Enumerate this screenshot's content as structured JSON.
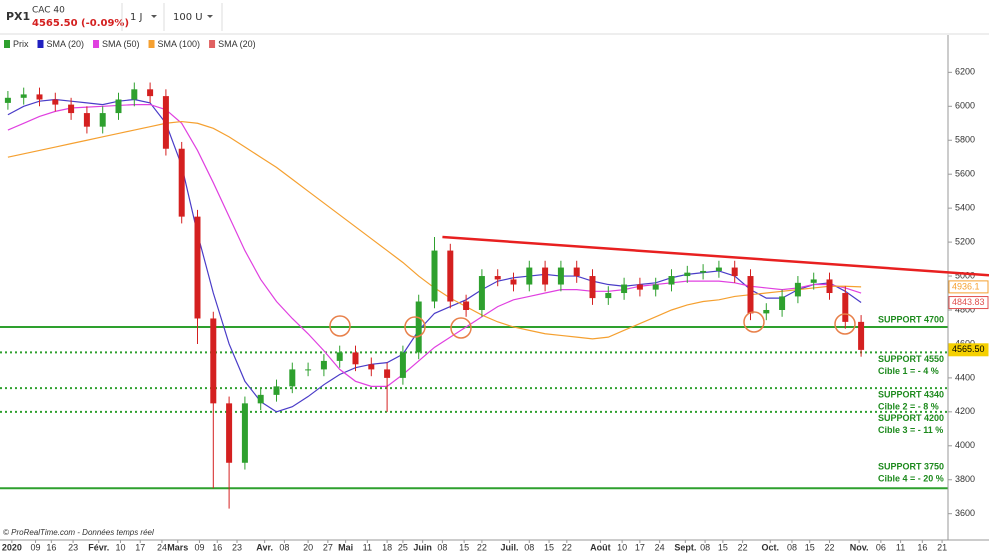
{
  "header": {
    "symbol": "PX1",
    "name": "CAC 40",
    "quote": "4565.50 (-0.09%)",
    "period": "1 J",
    "units": "100 U"
  },
  "footer": "© ProRealTime.com - Données temps réel",
  "chart_data": {
    "type": "candlestick",
    "legend": [
      {
        "name": "Prix",
        "color": "#2ea02e"
      },
      {
        "name": "SMA (20)",
        "color": "#2020c0"
      },
      {
        "name": "SMA (50)",
        "color": "#e040e0"
      },
      {
        "name": "SMA (100)",
        "color": "#f5a030"
      },
      {
        "name": "SMA (20)",
        "color": "#e06060"
      }
    ],
    "up_color": "#2ea02e",
    "down_color": "#d42020",
    "xlim": [
      0,
      240
    ],
    "ylim": [
      3445,
      6420
    ],
    "yticks": [
      3600,
      3800,
      4000,
      4200,
      4400,
      4600,
      4800,
      5000,
      5200,
      5400,
      5600,
      5800,
      6000,
      6200
    ],
    "xticks": [
      {
        "value": 3,
        "label": "2020"
      },
      {
        "value": 9,
        "label": "09"
      },
      {
        "value": 13,
        "label": "16"
      },
      {
        "value": 18.5,
        "label": "23"
      },
      {
        "value": 25,
        "label": "Févr."
      },
      {
        "value": 30.5,
        "label": "10"
      },
      {
        "value": 35.5,
        "label": "17"
      },
      {
        "value": 41,
        "label": "24"
      },
      {
        "value": 45,
        "label": "Mars"
      },
      {
        "value": 50.5,
        "label": "09"
      },
      {
        "value": 55,
        "label": "16"
      },
      {
        "value": 60,
        "label": "23"
      },
      {
        "value": 67,
        "label": "Avr."
      },
      {
        "value": 72,
        "label": "08"
      },
      {
        "value": 78,
        "label": "20"
      },
      {
        "value": 83,
        "label": "27"
      },
      {
        "value": 87.5,
        "label": "Mai"
      },
      {
        "value": 93,
        "label": "11"
      },
      {
        "value": 98,
        "label": "18"
      },
      {
        "value": 102,
        "label": "25"
      },
      {
        "value": 107,
        "label": "Juin"
      },
      {
        "value": 112,
        "label": "08"
      },
      {
        "value": 117.5,
        "label": "15"
      },
      {
        "value": 122,
        "label": "22"
      },
      {
        "value": 129,
        "label": "Juil."
      },
      {
        "value": 134,
        "label": "08"
      },
      {
        "value": 139,
        "label": "15"
      },
      {
        "value": 143.5,
        "label": "22"
      },
      {
        "value": 152,
        "label": "Août"
      },
      {
        "value": 157.5,
        "label": "10"
      },
      {
        "value": 162,
        "label": "17"
      },
      {
        "value": 167,
        "label": "24"
      },
      {
        "value": 173.5,
        "label": "Sept."
      },
      {
        "value": 178.5,
        "label": "08"
      },
      {
        "value": 183,
        "label": "15"
      },
      {
        "value": 188,
        "label": "22"
      },
      {
        "value": 195,
        "label": "Oct."
      },
      {
        "value": 200.5,
        "label": "08"
      },
      {
        "value": 205,
        "label": "15"
      },
      {
        "value": 210,
        "label": "22"
      },
      {
        "value": 217.5,
        "label": "Nov."
      },
      {
        "value": 223,
        "label": "06"
      },
      {
        "value": 228,
        "label": "11"
      },
      {
        "value": 233.5,
        "label": "16"
      },
      {
        "value": 238.5,
        "label": "21"
      }
    ],
    "x": [
      2,
      6,
      10,
      14,
      18,
      22,
      26,
      30,
      34,
      38,
      42,
      46,
      50,
      54,
      58,
      62,
      66,
      70,
      74,
      78,
      82,
      86,
      90,
      94,
      98,
      102,
      106,
      110,
      114,
      118,
      122,
      126,
      130,
      134,
      138,
      142,
      146,
      150,
      154,
      158,
      162,
      166,
      170,
      174,
      178,
      182,
      186,
      190,
      194,
      198,
      202,
      206,
      210,
      214,
      218
    ],
    "open": [
      6020,
      6050,
      6070,
      6040,
      6010,
      5960,
      5880,
      5960,
      6040,
      6100,
      6060,
      5750,
      5350,
      4750,
      4250,
      3900,
      4250,
      4300,
      4350,
      4450,
      4450,
      4500,
      4550,
      4480,
      4450,
      4400,
      4550,
      4850,
      5150,
      4850,
      4800,
      5000,
      4980,
      4950,
      5050,
      4950,
      5050,
      5000,
      4870,
      4900,
      4950,
      4920,
      4950,
      5000,
      5020,
      5030,
      5050,
      5000,
      4780,
      4800,
      4880,
      4960,
      4980,
      4900,
      4730
    ],
    "high": [
      6090,
      6110,
      6110,
      6080,
      6050,
      6000,
      6000,
      6080,
      6140,
      6140,
      6100,
      5790,
      5390,
      4790,
      4290,
      4290,
      4340,
      4390,
      4490,
      4490,
      4540,
      4590,
      4590,
      4520,
      4490,
      4590,
      4890,
      5230,
      5190,
      4890,
      5040,
      5040,
      5020,
      5090,
      5090,
      5090,
      5090,
      5040,
      4940,
      4990,
      4990,
      4990,
      5040,
      5060,
      5070,
      5090,
      5090,
      5040,
      4840,
      4920,
      5000,
      5020,
      5020,
      4940,
      4770
    ],
    "low": [
      5980,
      6010,
      6000,
      5970,
      5920,
      5840,
      5840,
      5920,
      6000,
      6020,
      5710,
      5310,
      4600,
      3750,
      3630,
      3860,
      4210,
      4260,
      4310,
      4410,
      4410,
      4460,
      4440,
      4410,
      4200,
      4360,
      4510,
      4810,
      4810,
      4760,
      4760,
      4940,
      4910,
      4910,
      4910,
      4910,
      4960,
      4830,
      4830,
      4860,
      4880,
      4880,
      4910,
      4960,
      4980,
      4990,
      4960,
      4740,
      4740,
      4760,
      4840,
      4920,
      4860,
      4690,
      4525
    ],
    "close": [
      6050,
      6070,
      6040,
      6010,
      5960,
      5880,
      5960,
      6040,
      6100,
      6060,
      5750,
      5350,
      4750,
      4250,
      3900,
      4250,
      4300,
      4350,
      4450,
      4450,
      4500,
      4550,
      4480,
      4450,
      4400,
      4550,
      4850,
      5150,
      4850,
      4800,
      5000,
      4980,
      4950,
      5050,
      4950,
      5050,
      5000,
      4870,
      4900,
      4950,
      4920,
      4950,
      5000,
      5020,
      5030,
      5050,
      5000,
      4780,
      4800,
      4880,
      4960,
      4980,
      4900,
      4730,
      4565
    ],
    "series": [
      {
        "name": "SMA (20)",
        "color": "#4a3cc8",
        "values": [
          5950,
          6000,
          6030,
          6040,
          6030,
          6020,
          6010,
          6030,
          6040,
          6020,
          5900,
          5650,
          5250,
          4900,
          4600,
          4380,
          4260,
          4200,
          4230,
          4290,
          4360,
          4420,
          4460,
          4480,
          4490,
          4540,
          4680,
          4780,
          4820,
          4860,
          4920,
          4970,
          4990,
          5000,
          5010,
          5000,
          5000,
          4970,
          4950,
          4940,
          4950,
          4960,
          4990,
          5010,
          5020,
          5030,
          5000,
          4920,
          4870,
          4870,
          4920,
          4950,
          4960,
          4910,
          4844
        ]
      },
      {
        "name": "SMA (50)",
        "color": "#e040e0",
        "values": [
          5860,
          5900,
          5940,
          5970,
          5990,
          5995,
          6000,
          6005,
          6010,
          6010,
          5980,
          5900,
          5740,
          5550,
          5350,
          5150,
          4980,
          4850,
          4750,
          4660,
          4560,
          4450,
          4380,
          4350,
          4350,
          4420,
          4500,
          4580,
          4640,
          4700,
          4760,
          4820,
          4860,
          4880,
          4900,
          4920,
          4920,
          4910,
          4910,
          4920,
          4940,
          4950,
          4960,
          4970,
          4970,
          4970,
          4960,
          4940,
          4930,
          4920,
          4930,
          4950,
          4950,
          4930,
          4900
        ]
      },
      {
        "name": "SMA (100)",
        "color": "#f5a030",
        "values": [
          5700,
          5720,
          5740,
          5760,
          5780,
          5800,
          5820,
          5840,
          5860,
          5880,
          5900,
          5910,
          5900,
          5870,
          5820,
          5760,
          5700,
          5640,
          5570,
          5500,
          5430,
          5360,
          5290,
          5220,
          5150,
          5080,
          5000,
          4930,
          4870,
          4820,
          4770,
          4730,
          4700,
          4680,
          4660,
          4650,
          4640,
          4630,
          4640,
          4680,
          4720,
          4760,
          4800,
          4830,
          4850,
          4860,
          4880,
          4890,
          4900,
          4910,
          4920,
          4930,
          4940,
          4940,
          4936
        ]
      }
    ],
    "resistance": {
      "color": "#e82020",
      "x": [
        112,
        240
      ],
      "values": [
        5230,
        4985
      ]
    },
    "supports": [
      {
        "value": 4700,
        "label": "SUPPORT 4700",
        "style": "solid"
      },
      {
        "value": 4550,
        "label": "SUPPORT 4550",
        "target": "Cible 1 = - 4 %",
        "style": "dotted"
      },
      {
        "value": 4340,
        "label": "SUPPORT 4340",
        "target": "Cible 2 = - 8 %",
        "style": "dotted"
      },
      {
        "value": 4200,
        "label": "SUPPORT 4200",
        "target": "Cible 3 = - 11 %",
        "style": "dotted"
      },
      {
        "value": 3750,
        "label": "SUPPORT 3750",
        "target": "Cible 4 = - 20 %",
        "style": "solid"
      }
    ],
    "support_color": "#2ea02e",
    "price_labels": [
      {
        "value": 4936.1,
        "label": "4936.1",
        "color": "#f5a030",
        "style": "outline"
      },
      {
        "value": 4843.83,
        "label": "4843.83",
        "color": "#e05050",
        "style": "outline"
      },
      {
        "value": 4565.5,
        "label": "4565.50",
        "color": "#f5d000",
        "style": "filled"
      }
    ]
  }
}
